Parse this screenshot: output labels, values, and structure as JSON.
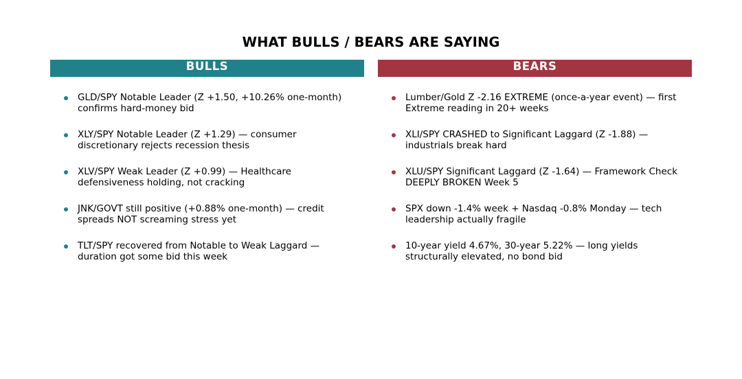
{
  "title": "WHAT BULLS / BEARS ARE SAYING",
  "colors": {
    "bulls": "#21818b",
    "bears": "#a33542"
  },
  "bulls": {
    "header": "BULLS",
    "items": [
      "GLD/SPY Notable Leader (Z +1.50, +10.26% one-month) confirms hard-money bid",
      "XLY/SPY Notable Leader (Z +1.29) — consumer discretionary rejects recession thesis",
      "XLV/SPY Weak Leader (Z +0.99) — Healthcare defensiveness holding, not cracking",
      "JNK/GOVT still positive (+0.88% one-month) — credit spreads NOT screaming stress yet",
      "TLT/SPY recovered from Notable to Weak Laggard — duration got some bid this week"
    ]
  },
  "bears": {
    "header": "BEARS",
    "items": [
      "Lumber/Gold Z -2.16 EXTREME (once-a-year event) — first Extreme reading in 20+ weeks",
      "XLI/SPY CRASHED to Significant Laggard (Z -1.88) — industrials break hard",
      "XLU/SPY Significant Laggard (Z -1.64) — Framework Check DEEPLY BROKEN Week 5",
      "SPX down -1.4% week + Nasdaq -0.8% Monday — tech leadership actually fragile",
      "10-year yield 4.67%, 30-year 5.22% — long yields structurally elevated, no bond bid"
    ]
  }
}
